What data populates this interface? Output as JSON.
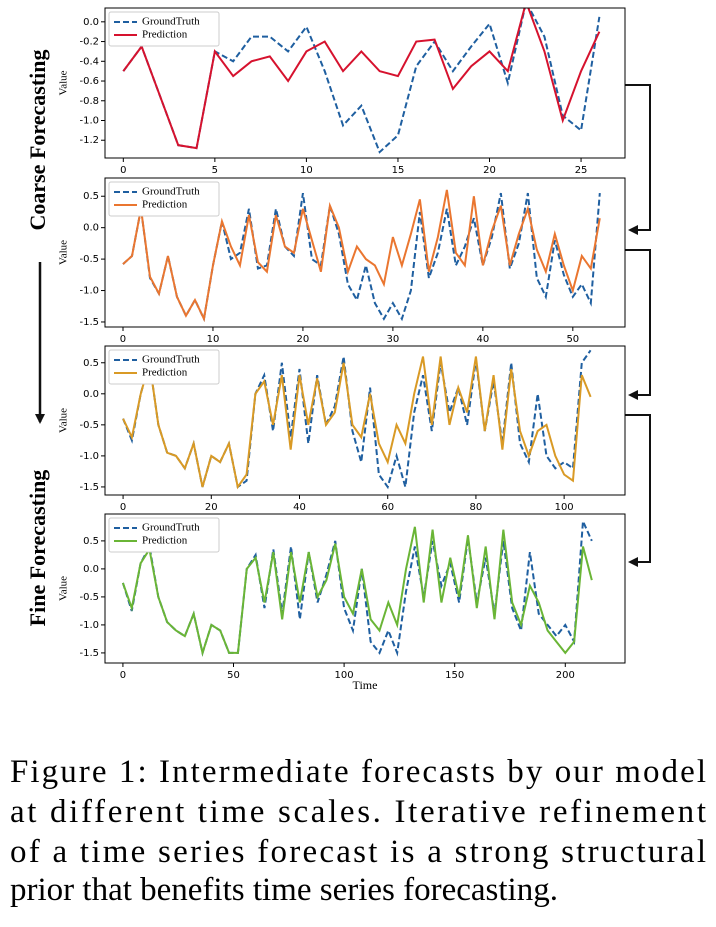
{
  "chart_data": [
    {
      "type": "line",
      "y_label": "Value",
      "legend": "upper left",
      "grid": false,
      "x": [
        0,
        1,
        2,
        3,
        4,
        5,
        6,
        7,
        8,
        9,
        10,
        11,
        12,
        13,
        14,
        15,
        16,
        17,
        18,
        19,
        20,
        21,
        22,
        23,
        24,
        25,
        26
      ],
      "series": [
        {
          "name": "GroundTruth",
          "color": "#1f5fa0",
          "linestyle": "dashed",
          "values": [
            -0.5,
            -0.25,
            -0.75,
            -1.25,
            -1.28,
            -0.3,
            -0.4,
            -0.15,
            -0.15,
            -0.3,
            -0.05,
            -0.5,
            -1.05,
            -0.85,
            -1.32,
            -1.15,
            -0.45,
            -0.2,
            -0.5,
            -0.25,
            -0.02,
            -0.62,
            0.2,
            -0.15,
            -0.95,
            -1.1,
            0.05
          ]
        },
        {
          "name": "Prediction",
          "color": "#d6122e",
          "linestyle": "solid",
          "values": [
            -0.5,
            -0.25,
            -0.75,
            -1.25,
            -1.28,
            -0.3,
            -0.55,
            -0.4,
            -0.35,
            -0.6,
            -0.3,
            -0.2,
            -0.5,
            -0.3,
            -0.5,
            -0.55,
            -0.2,
            -0.18,
            -0.68,
            -0.45,
            -0.3,
            -0.5,
            0.2,
            -0.3,
            -1.0,
            -0.5,
            -0.1
          ]
        }
      ],
      "xlim": [
        -1,
        27.4
      ],
      "xticks": [
        0,
        5,
        10,
        15,
        20,
        25
      ],
      "ylim": [
        -1.38,
        0.14
      ],
      "yticks": [
        {
          "value": 0,
          "label": "0.0"
        },
        -0.2,
        -0.4,
        -0.6,
        -0.8,
        {
          "value": -1,
          "label": "-1.0"
        },
        -1.2
      ]
    },
    {
      "type": "line",
      "y_label": "Value",
      "legend": "upper left",
      "grid": false,
      "x": [
        0,
        1,
        2,
        3,
        4,
        5,
        6,
        7,
        8,
        9,
        10,
        11,
        12,
        13,
        14,
        15,
        16,
        17,
        18,
        19,
        20,
        21,
        22,
        23,
        24,
        25,
        26,
        27,
        28,
        29,
        30,
        31,
        32,
        33,
        34,
        35,
        36,
        37,
        38,
        39,
        40,
        41,
        42,
        43,
        44,
        45,
        46,
        47,
        48,
        49,
        50,
        51,
        52,
        53
      ],
      "series": [
        {
          "name": "GroundTruth",
          "color": "#1f5fa0",
          "linestyle": "dashed",
          "values": [
            -0.58,
            -0.45,
            0.3,
            -0.8,
            -1.05,
            -0.45,
            -1.1,
            -1.4,
            -1.15,
            -1.45,
            -0.6,
            0.1,
            -0.5,
            -0.4,
            0.3,
            -0.65,
            -0.6,
            0.3,
            -0.3,
            -0.45,
            0.55,
            -0.5,
            -0.6,
            0.35,
            -0.1,
            -0.9,
            -1.15,
            -0.6,
            -1.2,
            -1.45,
            -1.2,
            -1.45,
            -1.0,
            0.25,
            -0.8,
            -0.4,
            0.3,
            -0.6,
            -0.3,
            0.15,
            -0.6,
            -0.15,
            0.55,
            -0.65,
            -0.25,
            0.55,
            -0.8,
            -1.1,
            -0.2,
            -0.75,
            -1.1,
            -0.9,
            -1.2,
            0.55
          ]
        },
        {
          "name": "Prediction",
          "color": "#ea7630",
          "linestyle": "solid",
          "values": [
            -0.58,
            -0.45,
            0.3,
            -0.78,
            -1.05,
            -0.45,
            -1.1,
            -1.4,
            -1.15,
            -1.45,
            -0.6,
            0.1,
            -0.3,
            -0.6,
            0.2,
            -0.55,
            -0.7,
            0.2,
            -0.3,
            -0.4,
            0.3,
            -0.2,
            -0.7,
            0.35,
            0.0,
            -0.7,
            -0.3,
            -0.5,
            -0.6,
            -0.9,
            -0.15,
            -0.6,
            -0.1,
            0.45,
            -0.7,
            -0.15,
            0.6,
            -0.4,
            -0.6,
            0.5,
            -0.6,
            -0.05,
            0.35,
            -0.6,
            -0.1,
            0.3,
            -0.35,
            -0.7,
            -0.1,
            -0.6,
            -1.0,
            -0.45,
            -0.65,
            0.15
          ]
        }
      ],
      "xlim": [
        -2,
        55.8
      ],
      "xticks": [
        0,
        10,
        20,
        30,
        40,
        50
      ],
      "ylim": [
        -1.58,
        0.79
      ],
      "yticks": [
        0.5,
        {
          "value": 0,
          "label": "0.0"
        },
        -0.5,
        {
          "value": -1,
          "label": "-1.0"
        },
        -1.5
      ]
    },
    {
      "type": "line",
      "y_label": "Value",
      "legend": "upper left",
      "grid": false,
      "x": [
        0,
        2,
        4,
        6,
        8,
        10,
        12,
        14,
        16,
        18,
        20,
        22,
        24,
        26,
        28,
        30,
        32,
        34,
        36,
        38,
        40,
        42,
        44,
        46,
        48,
        50,
        52,
        54,
        56,
        58,
        60,
        62,
        64,
        66,
        68,
        70,
        72,
        74,
        76,
        78,
        80,
        82,
        84,
        86,
        88,
        90,
        92,
        94,
        96,
        98,
        100,
        102,
        104,
        106
      ],
      "series": [
        {
          "name": "GroundTruth",
          "color": "#1f5fa0",
          "linestyle": "dashed",
          "values": [
            -0.4,
            -0.75,
            0.0,
            0.5,
            -0.5,
            -0.95,
            -1.0,
            -1.2,
            -0.8,
            -1.5,
            -1.0,
            -1.1,
            -0.8,
            -1.5,
            -1.4,
            0.0,
            0.3,
            -0.6,
            0.5,
            -0.7,
            0.4,
            -0.8,
            0.3,
            -0.5,
            -0.2,
            0.6,
            -0.6,
            -1.1,
            0.1,
            -1.3,
            -1.5,
            -1.0,
            -1.5,
            -0.3,
            0.3,
            -0.6,
            0.5,
            -0.3,
            0.1,
            -0.5,
            0.55,
            -0.6,
            0.2,
            -0.8,
            0.5,
            -0.8,
            -1.1,
            0.0,
            -1.0,
            -1.2,
            -1.1,
            -1.2,
            0.5,
            0.7
          ]
        },
        {
          "name": "Prediction",
          "color": "#d99a25",
          "linestyle": "solid",
          "values": [
            -0.4,
            -0.7,
            0.0,
            0.5,
            -0.5,
            -0.95,
            -1.0,
            -1.2,
            -0.8,
            -1.5,
            -1.0,
            -1.1,
            -0.8,
            -1.5,
            -1.3,
            0.0,
            0.2,
            -0.5,
            0.3,
            -0.9,
            0.3,
            -0.5,
            0.25,
            -0.5,
            -0.3,
            0.5,
            -0.5,
            -0.7,
            0.0,
            -0.8,
            -1.1,
            -0.5,
            -0.8,
            0.0,
            0.6,
            -0.5,
            0.6,
            -0.5,
            0.1,
            -0.3,
            0.6,
            -0.6,
            0.3,
            -0.9,
            0.4,
            -0.6,
            -1.0,
            -0.6,
            -0.5,
            -1.0,
            -1.3,
            -1.4,
            0.3,
            -0.05
          ]
        }
      ],
      "xlim": [
        -4.1,
        113.8
      ],
      "xticks": [
        0,
        20,
        40,
        60,
        80,
        100
      ],
      "ylim": [
        -1.63,
        0.77
      ],
      "yticks": [
        0.5,
        {
          "value": 0,
          "label": "0.0"
        },
        -0.5,
        {
          "value": -1,
          "label": "-1.0"
        },
        -1.5
      ]
    },
    {
      "type": "line",
      "y_label": "Value",
      "x_label": "Time",
      "legend": "upper left",
      "grid": false,
      "x": [
        0,
        4,
        8,
        12,
        16,
        20,
        24,
        28,
        32,
        36,
        40,
        44,
        48,
        52,
        56,
        60,
        64,
        68,
        72,
        76,
        80,
        84,
        88,
        92,
        96,
        100,
        104,
        108,
        112,
        116,
        120,
        124,
        128,
        132,
        136,
        140,
        144,
        148,
        152,
        156,
        160,
        164,
        168,
        172,
        176,
        180,
        184,
        188,
        192,
        196,
        200,
        204,
        208,
        212
      ],
      "series": [
        {
          "name": "GroundTruth",
          "color": "#1f5fa0",
          "linestyle": "dashed",
          "values": [
            -0.25,
            -0.75,
            0.1,
            0.4,
            -0.5,
            -0.95,
            -1.1,
            -1.2,
            -0.8,
            -1.5,
            -1.0,
            -1.1,
            -1.5,
            -1.5,
            0.0,
            0.25,
            -0.7,
            0.35,
            -0.8,
            0.4,
            -0.9,
            0.3,
            -0.6,
            -0.1,
            0.5,
            -0.7,
            -1.1,
            0.0,
            -1.3,
            -1.5,
            -1.1,
            -1.5,
            -0.4,
            0.4,
            -0.5,
            0.5,
            -0.3,
            0.1,
            -0.6,
            0.55,
            -0.6,
            0.2,
            -0.8,
            0.5,
            -0.7,
            -1.1,
            0.3,
            -0.8,
            -1.0,
            -1.2,
            -1.0,
            -1.3,
            0.85,
            0.5
          ]
        },
        {
          "name": "Prediction",
          "color": "#6ab536",
          "linestyle": "solid",
          "values": [
            -0.25,
            -0.7,
            0.1,
            0.35,
            -0.5,
            -0.95,
            -1.1,
            -1.2,
            -0.8,
            -1.5,
            -1.0,
            -1.1,
            -1.5,
            -1.5,
            0.0,
            0.2,
            -0.6,
            0.3,
            -0.9,
            0.3,
            -0.6,
            0.3,
            -0.5,
            -0.2,
            0.45,
            -0.5,
            -0.8,
            0.0,
            -0.9,
            -1.1,
            -0.6,
            -1.0,
            0.0,
            0.75,
            -0.6,
            0.7,
            -0.6,
            0.2,
            -0.5,
            0.6,
            -0.7,
            0.4,
            -0.9,
            0.7,
            -0.6,
            -1.0,
            -0.3,
            -0.6,
            -1.1,
            -1.3,
            -1.5,
            -1.3,
            0.4,
            -0.2
          ]
        }
      ],
      "xlim": [
        -8.1,
        227
      ],
      "xticks": [
        0,
        50,
        100,
        150,
        200
      ],
      "ylim": [
        -1.68,
        0.98
      ],
      "yticks": [
        0.5,
        {
          "value": 0,
          "label": "0.0"
        },
        -0.5,
        {
          "value": -1,
          "label": "-1.0"
        },
        -1.5
      ]
    }
  ],
  "side_labels": {
    "top": "Coarse Forecasting",
    "bottom": "Fine Forecasting"
  },
  "caption": [
    "Figure 1: Intermediate forecasts by our model",
    "at different time scales. Iterative refinement",
    "of a time series forecast is a strong structural",
    "prior that benefits time series forecasting."
  ]
}
